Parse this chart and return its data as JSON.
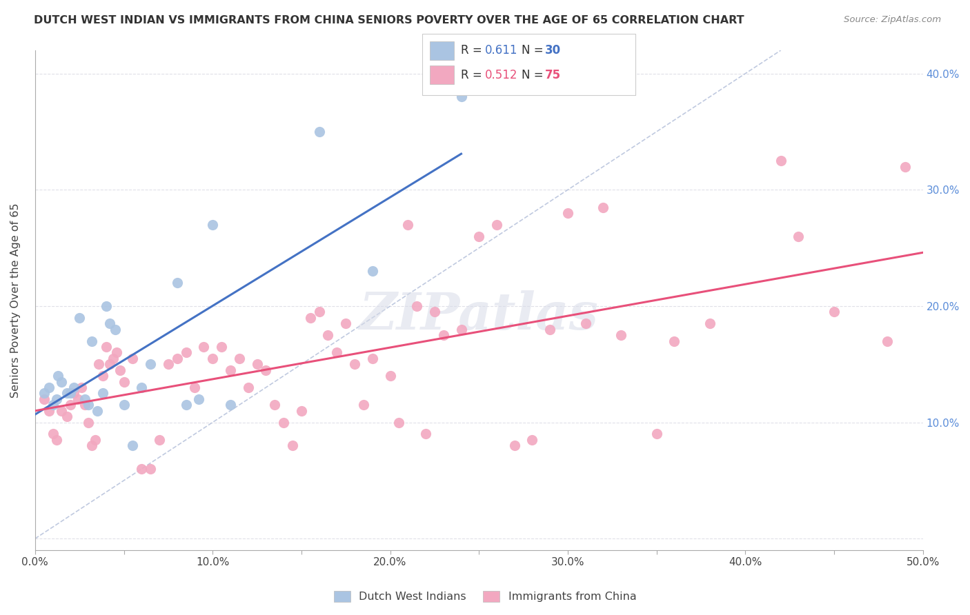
{
  "title": "DUTCH WEST INDIAN VS IMMIGRANTS FROM CHINA SENIORS POVERTY OVER THE AGE OF 65 CORRELATION CHART",
  "source": "Source: ZipAtlas.com",
  "ylabel": "Seniors Poverty Over the Age of 65",
  "xlim": [
    0.0,
    50.0
  ],
  "ylim": [
    -1.0,
    42.0
  ],
  "label1": "Dutch West Indians",
  "label2": "Immigrants from China",
  "color_blue": "#aac4e2",
  "color_pink": "#f2a8c0",
  "line_blue": "#4472c4",
  "line_pink": "#e8507a",
  "line_dashed_color": "#b0bcd8",
  "background_color": "#ffffff",
  "grid_color": "#e0e0e8",
  "watermark": "ZIPatlas",
  "blue_x": [
    0.5,
    0.8,
    1.0,
    1.2,
    1.3,
    1.5,
    1.8,
    2.0,
    2.2,
    2.5,
    2.8,
    3.0,
    3.2,
    3.5,
    3.8,
    4.0,
    4.2,
    4.5,
    5.0,
    5.5,
    6.0,
    6.5,
    8.0,
    8.5,
    9.2,
    10.0,
    11.0,
    16.0,
    19.0,
    24.0
  ],
  "blue_y": [
    12.5,
    13.0,
    11.5,
    12.0,
    14.0,
    13.5,
    12.5,
    12.5,
    13.0,
    19.0,
    12.0,
    11.5,
    17.0,
    11.0,
    12.5,
    20.0,
    18.5,
    18.0,
    11.5,
    8.0,
    13.0,
    15.0,
    22.0,
    11.5,
    12.0,
    27.0,
    11.5,
    35.0,
    23.0,
    38.0
  ],
  "pink_x": [
    0.5,
    0.8,
    1.0,
    1.2,
    1.5,
    1.8,
    2.0,
    2.2,
    2.4,
    2.6,
    2.8,
    3.0,
    3.2,
    3.4,
    3.6,
    3.8,
    4.0,
    4.2,
    4.4,
    4.6,
    4.8,
    5.0,
    5.5,
    6.0,
    6.5,
    7.0,
    7.5,
    8.0,
    8.5,
    9.0,
    9.5,
    10.0,
    10.5,
    11.0,
    11.5,
    12.0,
    12.5,
    13.0,
    13.5,
    14.0,
    14.5,
    15.0,
    15.5,
    16.0,
    16.5,
    17.0,
    17.5,
    18.0,
    18.5,
    19.0,
    20.0,
    20.5,
    21.0,
    21.5,
    22.0,
    22.5,
    23.0,
    24.0,
    25.0,
    26.0,
    27.0,
    28.0,
    29.0,
    30.0,
    31.0,
    32.0,
    33.0,
    35.0,
    36.0,
    38.0,
    42.0,
    43.0,
    45.0,
    48.0,
    49.0
  ],
  "pink_y": [
    12.0,
    11.0,
    9.0,
    8.5,
    11.0,
    10.5,
    11.5,
    12.5,
    12.0,
    13.0,
    11.5,
    10.0,
    8.0,
    8.5,
    15.0,
    14.0,
    16.5,
    15.0,
    15.5,
    16.0,
    14.5,
    13.5,
    15.5,
    6.0,
    6.0,
    8.5,
    15.0,
    15.5,
    16.0,
    13.0,
    16.5,
    15.5,
    16.5,
    14.5,
    15.5,
    13.0,
    15.0,
    14.5,
    11.5,
    10.0,
    8.0,
    11.0,
    19.0,
    19.5,
    17.5,
    16.0,
    18.5,
    15.0,
    11.5,
    15.5,
    14.0,
    10.0,
    27.0,
    20.0,
    9.0,
    19.5,
    17.5,
    18.0,
    26.0,
    27.0,
    8.0,
    8.5,
    18.0,
    28.0,
    18.5,
    28.5,
    17.5,
    9.0,
    17.0,
    18.5,
    32.5,
    26.0,
    19.5,
    17.0,
    32.0
  ]
}
